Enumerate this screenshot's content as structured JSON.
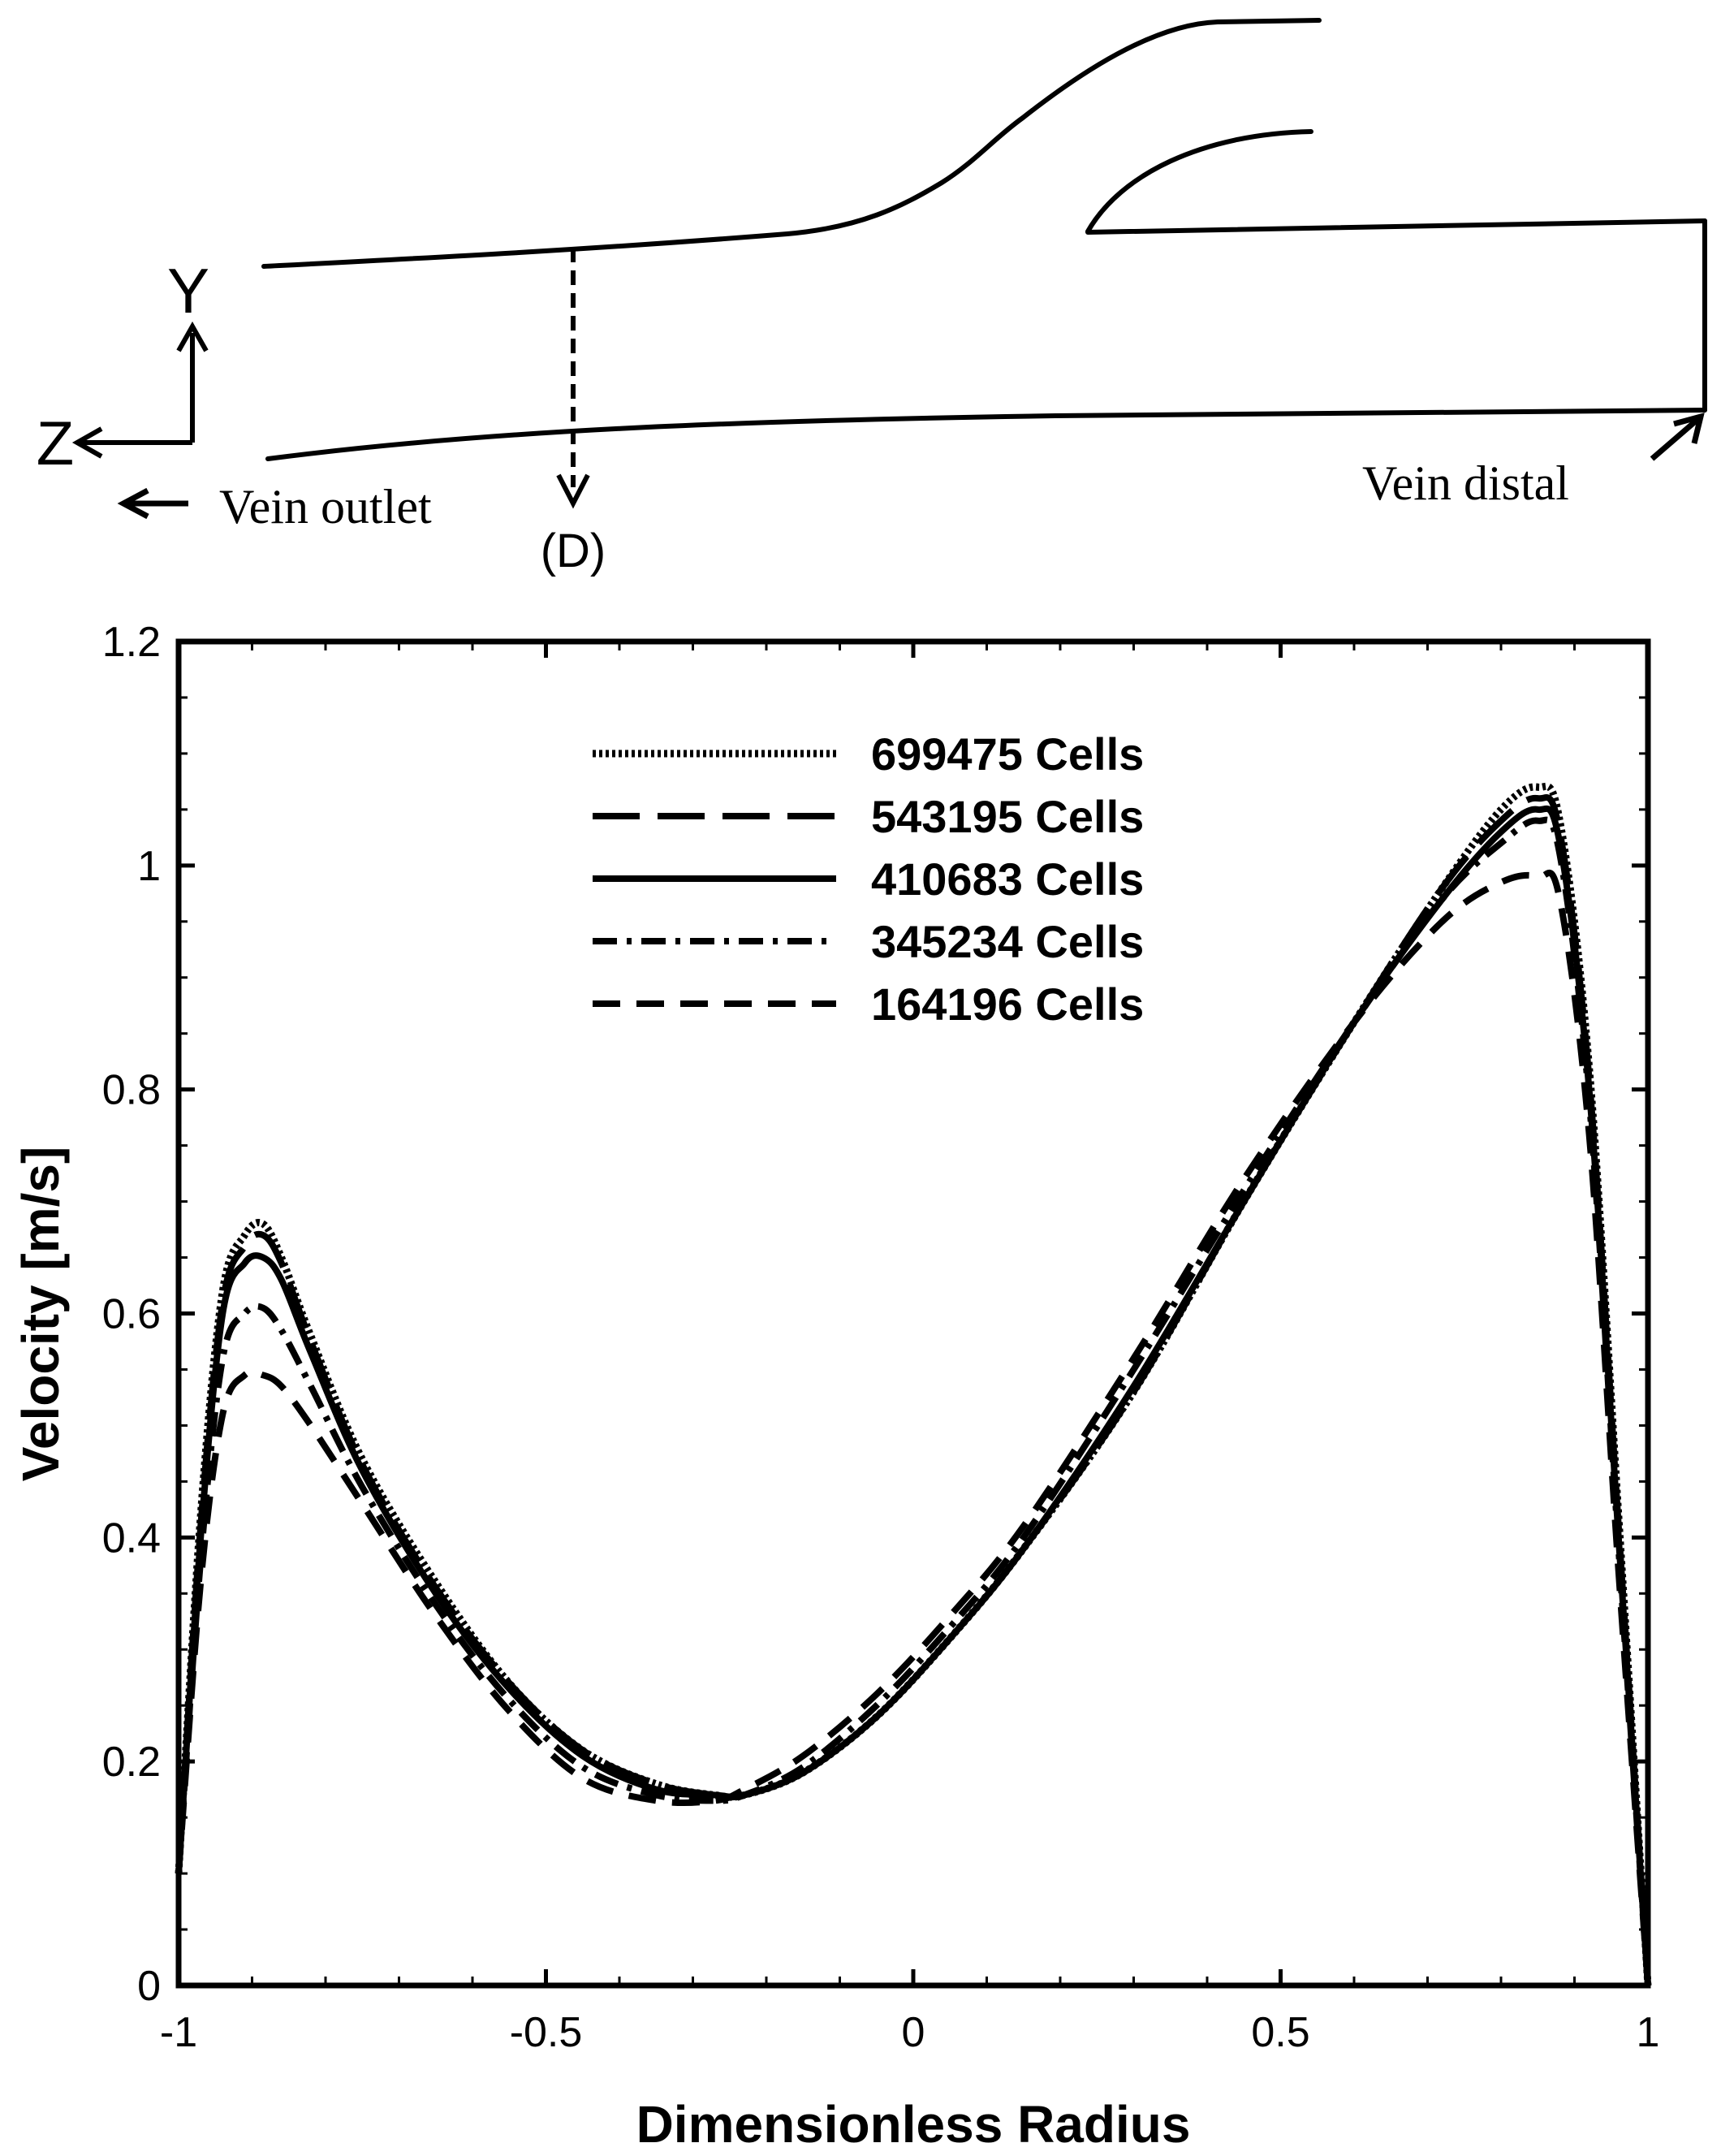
{
  "diagram": {
    "axis_y_label": "Y",
    "axis_z_label": "Z",
    "outlet_label": "Vein outlet",
    "distal_label": "Vein distal",
    "section_label": "(D)"
  },
  "chart_data": {
    "type": "line",
    "title": "",
    "xlabel": "Dimensionless Radius",
    "ylabel": "Velocity [m/s]",
    "xlim": [
      -1,
      1
    ],
    "ylim": [
      0,
      1.2
    ],
    "xticks": [
      -1,
      -0.5,
      0,
      0.5,
      1
    ],
    "xtick_labels": [
      "-1",
      "-0.5",
      "0",
      "0.5",
      "1"
    ],
    "yticks": [
      0,
      0.2,
      0.4,
      0.6,
      0.8,
      1,
      1.2
    ],
    "ytick_labels": [
      "0",
      "0.2",
      "0.4",
      "0.6",
      "0.8",
      "1",
      "1.2"
    ],
    "grid": false,
    "legend_position": "top-center",
    "series": [
      {
        "name": "699475 Cells",
        "style": "dotted",
        "x": [
          -1,
          -0.97,
          -0.94,
          -0.91,
          -0.885,
          -0.86,
          -0.82,
          -0.75,
          -0.65,
          -0.55,
          -0.45,
          -0.35,
          -0.27,
          -0.23,
          -0.15,
          -0.05,
          0.05,
          0.15,
          0.3,
          0.45,
          0.6,
          0.72,
          0.8,
          0.85,
          0.88,
          0.92,
          0.96,
          1
        ],
        "y": [
          0.1,
          0.42,
          0.62,
          0.67,
          0.68,
          0.65,
          0.58,
          0.47,
          0.36,
          0.27,
          0.21,
          0.18,
          0.17,
          0.17,
          0.19,
          0.24,
          0.31,
          0.39,
          0.53,
          0.7,
          0.86,
          0.98,
          1.05,
          1.07,
          1.04,
          0.82,
          0.42,
          0
        ]
      },
      {
        "name": "543195 Cells",
        "style": "long-dash",
        "x": [
          -1,
          -0.97,
          -0.94,
          -0.91,
          -0.885,
          -0.86,
          -0.82,
          -0.75,
          -0.65,
          -0.55,
          -0.45,
          -0.35,
          -0.27,
          -0.23,
          -0.15,
          -0.05,
          0.05,
          0.15,
          0.3,
          0.45,
          0.6,
          0.72,
          0.8,
          0.85,
          0.88,
          0.92,
          0.96,
          1
        ],
        "y": [
          0.1,
          0.41,
          0.61,
          0.66,
          0.67,
          0.645,
          0.575,
          0.465,
          0.355,
          0.27,
          0.21,
          0.18,
          0.17,
          0.17,
          0.19,
          0.24,
          0.31,
          0.39,
          0.53,
          0.7,
          0.86,
          0.98,
          1.04,
          1.06,
          1.03,
          0.81,
          0.41,
          0
        ]
      },
      {
        "name": "410683 Cells",
        "style": "solid",
        "x": [
          -1,
          -0.97,
          -0.94,
          -0.91,
          -0.885,
          -0.86,
          -0.82,
          -0.75,
          -0.65,
          -0.55,
          -0.45,
          -0.35,
          -0.27,
          -0.23,
          -0.15,
          -0.05,
          0.05,
          0.15,
          0.3,
          0.45,
          0.6,
          0.72,
          0.8,
          0.85,
          0.88,
          0.92,
          0.96,
          1
        ],
        "y": [
          0.1,
          0.4,
          0.6,
          0.645,
          0.65,
          0.63,
          0.565,
          0.46,
          0.35,
          0.265,
          0.205,
          0.175,
          0.17,
          0.17,
          0.19,
          0.24,
          0.31,
          0.39,
          0.535,
          0.7,
          0.86,
          0.97,
          1.03,
          1.05,
          1.02,
          0.8,
          0.4,
          0
        ]
      },
      {
        "name": "345234 Cells",
        "style": "dash-dot",
        "x": [
          -1,
          -0.97,
          -0.94,
          -0.91,
          -0.885,
          -0.86,
          -0.82,
          -0.75,
          -0.65,
          -0.55,
          -0.45,
          -0.35,
          -0.27,
          -0.23,
          -0.15,
          -0.05,
          0.05,
          0.15,
          0.3,
          0.45,
          0.6,
          0.72,
          0.8,
          0.85,
          0.88,
          0.92,
          0.96,
          1
        ],
        "y": [
          0.1,
          0.38,
          0.56,
          0.6,
          0.605,
          0.585,
          0.535,
          0.445,
          0.34,
          0.255,
          0.195,
          0.17,
          0.165,
          0.17,
          0.195,
          0.25,
          0.32,
          0.4,
          0.55,
          0.71,
          0.86,
          0.97,
          1.02,
          1.04,
          1.01,
          0.79,
          0.39,
          0
        ]
      },
      {
        "name": "164196 Cells",
        "style": "dashed",
        "x": [
          -1,
          -0.97,
          -0.94,
          -0.91,
          -0.885,
          -0.86,
          -0.82,
          -0.75,
          -0.65,
          -0.55,
          -0.45,
          -0.35,
          -0.27,
          -0.23,
          -0.15,
          -0.05,
          0.05,
          0.15,
          0.3,
          0.45,
          0.6,
          0.72,
          0.8,
          0.85,
          0.88,
          0.92,
          0.96,
          1
        ],
        "y": [
          0.1,
          0.36,
          0.51,
          0.545,
          0.545,
          0.535,
          0.5,
          0.43,
          0.33,
          0.245,
          0.185,
          0.165,
          0.165,
          0.175,
          0.205,
          0.26,
          0.33,
          0.41,
          0.56,
          0.72,
          0.86,
          0.95,
          0.985,
          0.99,
          0.97,
          0.76,
          0.37,
          0
        ]
      }
    ]
  }
}
